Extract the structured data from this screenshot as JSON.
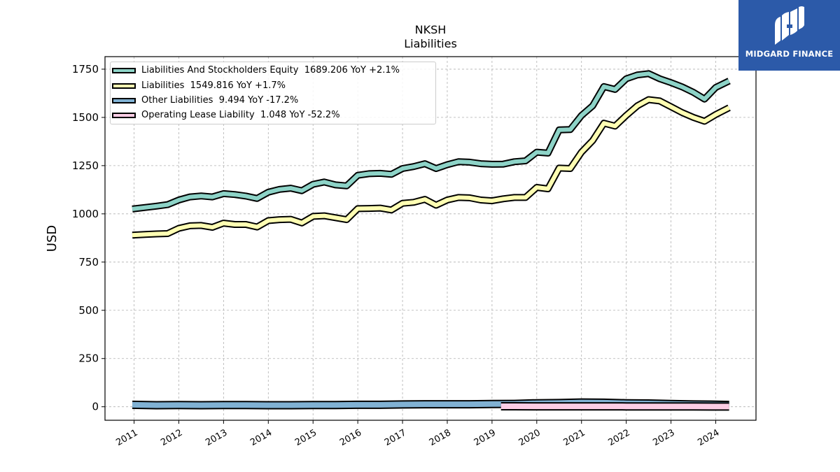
{
  "chart_data": {
    "type": "line",
    "title": "NKSH",
    "subtitle": "Liabilities",
    "ylabel": "USD",
    "ylim": [
      -70,
      1815
    ],
    "xlim": [
      2010.35,
      2024.9
    ],
    "yticks": [
      0,
      250,
      500,
      750,
      1000,
      1250,
      1500,
      1750
    ],
    "xticks": [
      2011,
      2012,
      2013,
      2014,
      2015,
      2016,
      2017,
      2018,
      2019,
      2020,
      2021,
      2022,
      2023,
      2024
    ],
    "xtick_labels": [
      "2011",
      "2012",
      "2013",
      "2014",
      "2015",
      "2016",
      "2017",
      "2018",
      "2019",
      "2020",
      "2021",
      "2022",
      "2023",
      "2024"
    ],
    "grid": true,
    "legend_position": "top-left",
    "series": [
      {
        "name": "Liabilities And Stockholders Equity",
        "legend_label": "Liabilities And Stockholders Equity  1689.206 YoY +2.1%",
        "color": "#8dd3c7",
        "kind": "line",
        "x": [
          2010.96,
          2011.25,
          2011.5,
          2011.75,
          2012.0,
          2012.25,
          2012.5,
          2012.75,
          2013.0,
          2013.25,
          2013.5,
          2013.75,
          2014.0,
          2014.25,
          2014.5,
          2014.75,
          2015.0,
          2015.25,
          2015.5,
          2015.75,
          2016.0,
          2016.25,
          2016.5,
          2016.75,
          2017.0,
          2017.25,
          2017.5,
          2017.75,
          2018.0,
          2018.25,
          2018.5,
          2018.75,
          2019.0,
          2019.25,
          2019.5,
          2019.75,
          2020.0,
          2020.25,
          2020.5,
          2020.75,
          2021.0,
          2021.25,
          2021.5,
          2021.75,
          2022.0,
          2022.25,
          2022.5,
          2022.75,
          2023.0,
          2023.25,
          2023.5,
          2023.75,
          2024.0,
          2024.3
        ],
        "y": [
          1025,
          1033,
          1040,
          1048,
          1072,
          1088,
          1093,
          1088,
          1105,
          1100,
          1092,
          1080,
          1112,
          1127,
          1133,
          1120,
          1153,
          1165,
          1150,
          1145,
          1200,
          1208,
          1210,
          1205,
          1235,
          1245,
          1260,
          1235,
          1255,
          1270,
          1268,
          1260,
          1257,
          1258,
          1270,
          1275,
          1320,
          1315,
          1435,
          1437,
          1510,
          1560,
          1660,
          1645,
          1700,
          1720,
          1727,
          1700,
          1680,
          1658,
          1630,
          1595,
          1655,
          1689
        ]
      },
      {
        "name": "Liabilities",
        "legend_label": "Liabilities  1549.816 YoY +1.7%",
        "color": "#ffffb3",
        "kind": "line",
        "x": [
          2010.96,
          2011.25,
          2011.5,
          2011.75,
          2012.0,
          2012.25,
          2012.5,
          2012.75,
          2013.0,
          2013.25,
          2013.5,
          2013.75,
          2014.0,
          2014.25,
          2014.5,
          2014.75,
          2015.0,
          2015.25,
          2015.5,
          2015.75,
          2016.0,
          2016.25,
          2016.5,
          2016.75,
          2017.0,
          2017.25,
          2017.5,
          2017.75,
          2018.0,
          2018.25,
          2018.5,
          2018.75,
          2019.0,
          2019.25,
          2019.5,
          2019.75,
          2020.0,
          2020.25,
          2020.5,
          2020.75,
          2021.0,
          2021.25,
          2021.5,
          2021.75,
          2022.0,
          2022.25,
          2022.5,
          2022.75,
          2023.0,
          2023.25,
          2023.5,
          2023.75,
          2024.0,
          2024.3
        ],
        "y": [
          890,
          893,
          896,
          898,
          925,
          938,
          940,
          930,
          952,
          945,
          945,
          932,
          965,
          970,
          972,
          953,
          987,
          990,
          980,
          970,
          1027,
          1028,
          1030,
          1020,
          1055,
          1060,
          1075,
          1045,
          1072,
          1085,
          1083,
          1072,
          1068,
          1078,
          1085,
          1085,
          1137,
          1130,
          1237,
          1235,
          1320,
          1380,
          1470,
          1455,
          1510,
          1560,
          1592,
          1585,
          1555,
          1525,
          1500,
          1480,
          1515,
          1550
        ]
      },
      {
        "name": "Other Liabilities",
        "legend_label": "Other Liabilities  9.494 YoY -17.2%",
        "color": "#80b1d3",
        "kind": "band",
        "x": [
          2010.96,
          2011.5,
          2012.0,
          2012.5,
          2013.0,
          2013.5,
          2014.0,
          2014.5,
          2015.0,
          2015.5,
          2016.0,
          2016.5,
          2017.0,
          2017.5,
          2018.0,
          2018.5,
          2019.0,
          2019.5,
          2020.0,
          2020.5,
          2021.0,
          2021.5,
          2022.0,
          2022.5,
          2023.0,
          2023.5,
          2024.0,
          2024.3
        ],
        "y": [
          10,
          8,
          9,
          8,
          9,
          9,
          8,
          8,
          9,
          9,
          10,
          10,
          12,
          13,
          13,
          13,
          14,
          15,
          18,
          19,
          22,
          21,
          18,
          17,
          14,
          12,
          11,
          9.5
        ]
      },
      {
        "name": "Operating Lease Liability",
        "legend_label": "Operating Lease Liability  1.048 YoY -52.2%",
        "color": "#fccde5",
        "kind": "band",
        "x": [
          2019.2,
          2019.5,
          2020.0,
          2020.5,
          2021.0,
          2021.5,
          2022.0,
          2022.5,
          2023.0,
          2023.5,
          2024.0,
          2024.3
        ],
        "y": [
          2.5,
          2.4,
          2.3,
          2.2,
          2.1,
          2.0,
          1.9,
          1.8,
          1.6,
          1.4,
          1.2,
          1.048
        ]
      }
    ]
  },
  "logo": {
    "text": "MIDGARD FINANCE",
    "color": "#2c5aa9"
  }
}
